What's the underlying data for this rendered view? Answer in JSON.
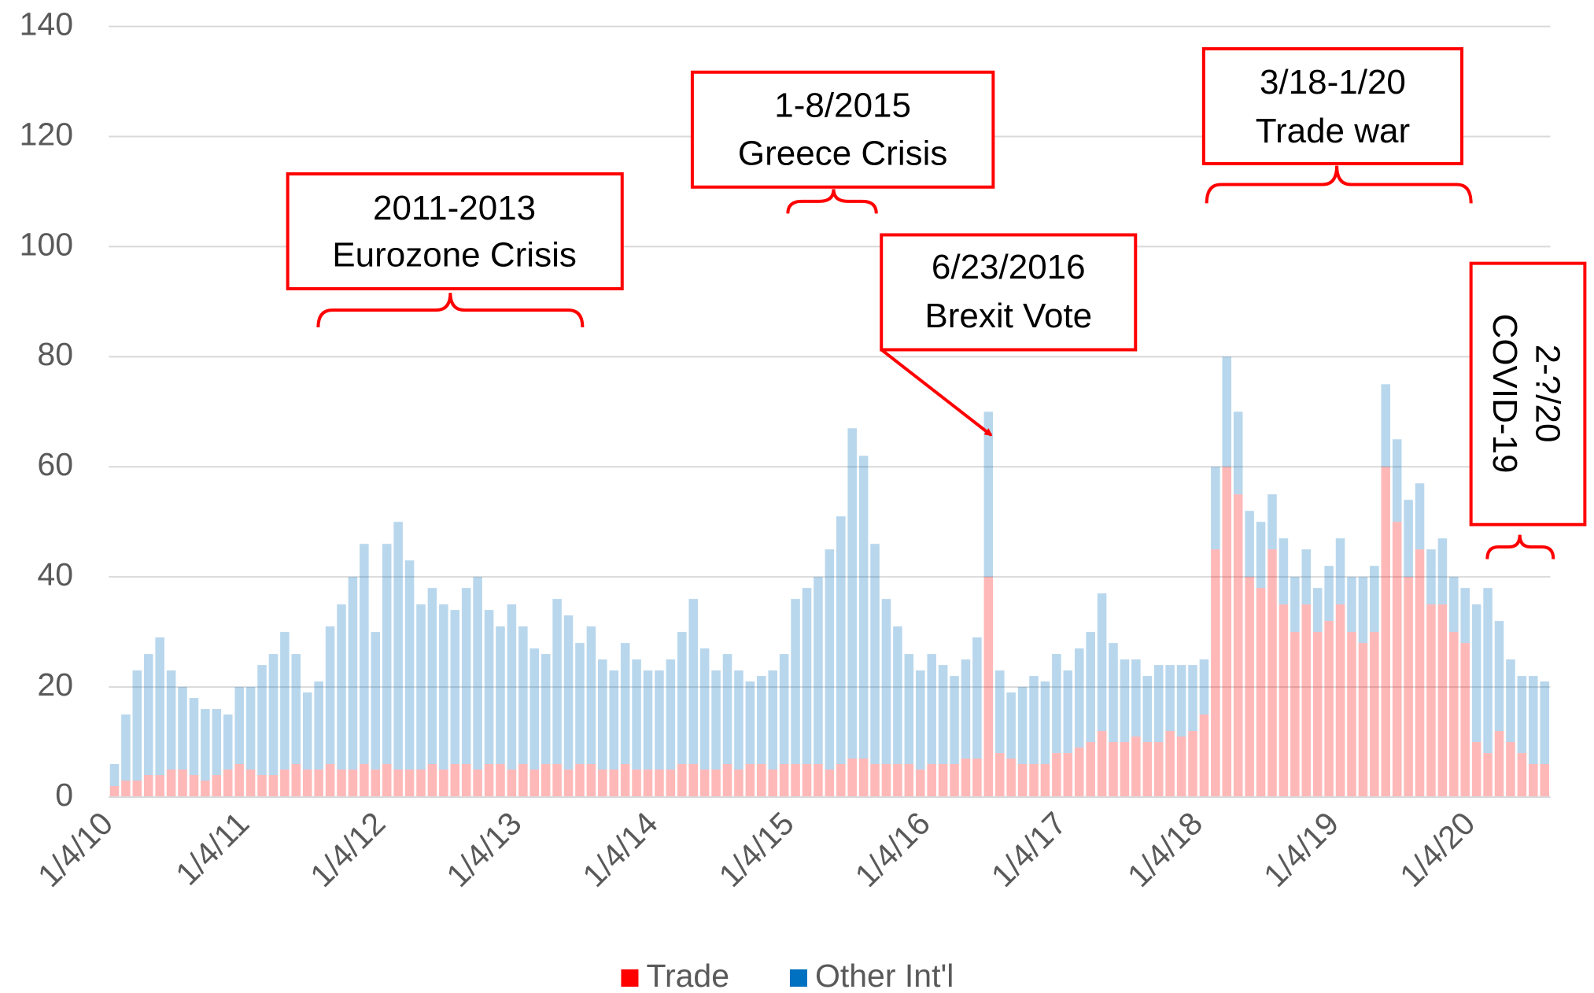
{
  "chart_data": {
    "type": "bar",
    "stacked": true,
    "categories": [
      "1/4/10",
      null,
      null,
      null,
      null,
      null,
      null,
      null,
      null,
      null,
      null,
      null,
      "1/4/11",
      null,
      null,
      null,
      null,
      null,
      null,
      null,
      null,
      null,
      null,
      null,
      "1/4/12",
      null,
      null,
      null,
      null,
      null,
      null,
      null,
      null,
      null,
      null,
      null,
      "1/4/13",
      null,
      null,
      null,
      null,
      null,
      null,
      null,
      null,
      null,
      null,
      null,
      "1/4/14",
      null,
      null,
      null,
      null,
      null,
      null,
      null,
      null,
      null,
      null,
      null,
      "1/4/15",
      null,
      null,
      null,
      null,
      null,
      null,
      null,
      null,
      null,
      null,
      null,
      "1/4/16",
      null,
      null,
      null,
      null,
      null,
      null,
      null,
      null,
      null,
      null,
      null,
      "1/4/17",
      null,
      null,
      null,
      null,
      null,
      null,
      null,
      null,
      null,
      null,
      null,
      "1/4/18",
      null,
      null,
      null,
      null,
      null,
      null,
      null,
      null,
      null,
      null,
      null,
      "1/4/19",
      null,
      null,
      null,
      null,
      null,
      null,
      null,
      null,
      null,
      null,
      null,
      "1/4/20",
      null,
      null,
      null,
      null,
      null,
      null
    ],
    "series": [
      {
        "name": "Trade",
        "color": "#ff0000",
        "values": [
          2,
          3,
          3,
          4,
          4,
          5,
          5,
          4,
          3,
          4,
          5,
          6,
          5,
          4,
          4,
          5,
          6,
          5,
          5,
          6,
          5,
          5,
          6,
          5,
          6,
          5,
          5,
          5,
          6,
          5,
          6,
          6,
          5,
          6,
          6,
          5,
          6,
          5,
          6,
          6,
          5,
          6,
          6,
          5,
          5,
          6,
          5,
          5,
          5,
          5,
          6,
          6,
          5,
          5,
          6,
          5,
          6,
          6,
          5,
          6,
          6,
          6,
          6,
          5,
          6,
          7,
          7,
          6,
          6,
          6,
          6,
          5,
          6,
          6,
          6,
          7,
          7,
          40,
          8,
          7,
          6,
          6,
          6,
          8,
          8,
          9,
          10,
          12,
          10,
          10,
          11,
          10,
          10,
          12,
          11,
          12,
          15,
          45,
          60,
          55,
          40,
          38,
          45,
          35,
          30,
          35,
          30,
          32,
          35,
          30,
          28,
          30,
          60,
          50,
          40,
          45,
          35,
          35,
          30,
          28,
          10,
          8,
          12,
          10,
          8,
          6,
          6
        ]
      },
      {
        "name": "Other Int'l",
        "color": "#0070c0",
        "values": [
          4,
          12,
          20,
          22,
          25,
          18,
          15,
          14,
          13,
          12,
          10,
          14,
          15,
          20,
          22,
          25,
          20,
          14,
          16,
          25,
          30,
          35,
          40,
          25,
          40,
          45,
          38,
          30,
          32,
          30,
          28,
          32,
          35,
          28,
          25,
          30,
          25,
          22,
          20,
          30,
          28,
          22,
          25,
          20,
          18,
          22,
          20,
          18,
          18,
          20,
          24,
          30,
          22,
          18,
          20,
          18,
          15,
          16,
          18,
          20,
          30,
          32,
          34,
          40,
          45,
          60,
          55,
          40,
          30,
          25,
          20,
          18,
          20,
          18,
          16,
          18,
          22,
          30,
          15,
          12,
          14,
          16,
          15,
          18,
          15,
          18,
          20,
          25,
          18,
          15,
          14,
          12,
          14,
          12,
          13,
          12,
          10,
          15,
          20,
          15,
          12,
          12,
          10,
          12,
          10,
          10,
          8,
          10,
          12,
          10,
          12,
          12,
          15,
          15,
          14,
          12,
          10,
          12,
          10,
          10,
          25,
          30,
          20,
          15,
          14,
          16,
          15
        ]
      }
    ],
    "ylim": [
      0,
      140
    ],
    "yticks": [
      0,
      20,
      40,
      60,
      80,
      100,
      120,
      140
    ],
    "grid": true,
    "legend": "bottom",
    "annotations": [
      {
        "lines": [
          "2011-2013",
          "Eurozone Crisis"
        ]
      },
      {
        "lines": [
          "1-8/2015",
          "Greece Crisis"
        ]
      },
      {
        "lines": [
          "6/23/2016",
          "Brexit Vote"
        ]
      },
      {
        "lines": [
          "3/18-1/20",
          "Trade war"
        ]
      },
      {
        "lines": [
          "2-?/20",
          "COVID-19"
        ]
      }
    ]
  }
}
